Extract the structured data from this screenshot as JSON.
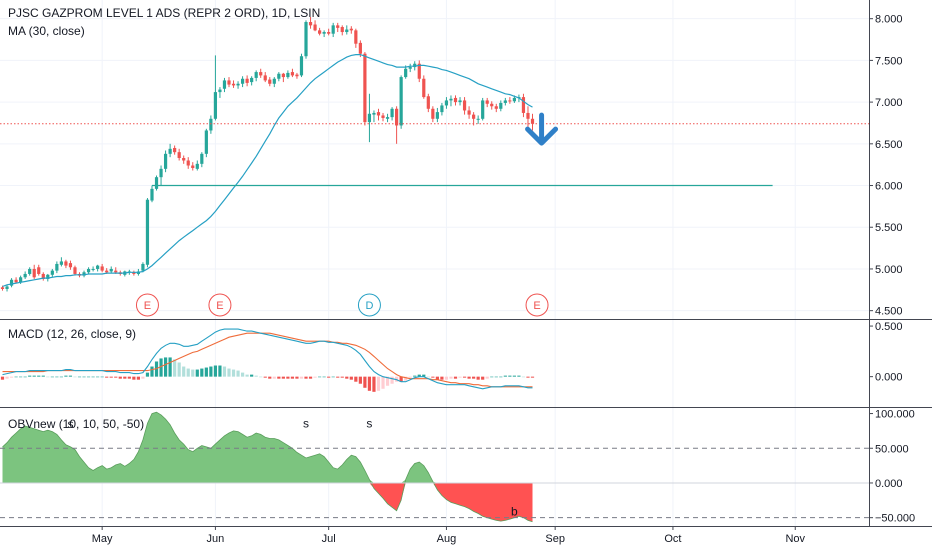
{
  "chart_data": [
    {
      "panel": "price",
      "type": "candlestick",
      "title": "PJSC GAZPROM LEVEL 1 ADS (REPR 2 ORD), 1D, LSIN",
      "indicator_label": "MA (30, close)",
      "ylim": [
        4.4,
        8.2
      ],
      "yticks": [
        "8.000",
        "7.500",
        "7.000",
        "6.500",
        "6.000",
        "5.500",
        "5.000",
        "4.500"
      ],
      "ytick_values": [
        8.0,
        7.5,
        7.0,
        6.5,
        6.0,
        5.5,
        5.0,
        4.5
      ],
      "reference_line": 6.74,
      "horizontal_level": 6.0,
      "down_arrow": {
        "day": 119,
        "value": 6.58
      },
      "events": [
        {
          "day": 32,
          "label": "E",
          "color": "#ef5350"
        },
        {
          "day": 48,
          "label": "E",
          "color": "#ef5350"
        },
        {
          "day": 81,
          "label": "D",
          "color": "#26a0c4"
        },
        {
          "day": 118,
          "label": "E",
          "color": "#ef5350"
        }
      ],
      "ma_series": {
        "name": "MA (30, close)",
        "color": "#26a0c4"
      }
    },
    {
      "panel": "macd",
      "type": "line",
      "indicator_label": "MACD (12, 26, close, 9)",
      "ylim": [
        -0.3,
        0.56
      ],
      "yticks": [
        "0.500",
        "0.000"
      ],
      "ytick_values": [
        0.5,
        0.0
      ]
    },
    {
      "panel": "obv",
      "type": "area",
      "indicator_label": "OBVnew (10, 10, 50, -50)",
      "ylim": [
        -62,
        108
      ],
      "yticks": [
        "100.000",
        "50.000",
        "0.000",
        "−50.000"
      ],
      "ytick_values": [
        100,
        50,
        0,
        -50
      ],
      "dashed_levels": [
        50,
        -50
      ],
      "markers": [
        {
          "day": 15,
          "value": 85,
          "label": "s"
        },
        {
          "day": 67,
          "value": 86,
          "label": "s"
        },
        {
          "day": 81,
          "value": 86,
          "label": "s"
        },
        {
          "day": 113,
          "value": -41,
          "label": "b"
        }
      ]
    }
  ],
  "candles_o": [
    4.78,
    4.76,
    4.8,
    4.87,
    4.84,
    4.9,
    4.94,
    5,
    5.02,
    4.94,
    4.88,
    4.93,
    4.98,
    5.05,
    5.09,
    5.07,
    5.02,
    4.94,
    4.92,
    4.96,
    4.99,
    5,
    5.03,
    4.98,
    4.97,
    4.98,
    4.96,
    4.93,
    4.96,
    4.96,
    4.94,
    4.98,
    5.05,
    5.82,
    5.96,
    6.1,
    6.2,
    6.38,
    6.45,
    6.4,
    6.33,
    6.3,
    6.24,
    6.2,
    6.26,
    6.38,
    6.66,
    6.8,
    7.12,
    7.16,
    7.26,
    7.22,
    7.2,
    7.22,
    7.28,
    7.24,
    7.29,
    7.36,
    7.32,
    7.27,
    7.22,
    7.28,
    7.34,
    7.3,
    7.36,
    7.33,
    7.32,
    7.55,
    7.96,
    7.93,
    7.86,
    7.82,
    7.84,
    7.82,
    7.92,
    7.9,
    7.84,
    7.88,
    7.86,
    7.71,
    7.58,
    6.76,
    6.85,
    6.88,
    6.84,
    6.8,
    6.82,
    6.92,
    6.72,
    7.3,
    7.4,
    7.42,
    7.46,
    7.28,
    7.07,
    6.92,
    6.8,
    6.88,
    6.96,
    7.02,
    7.05,
    7,
    7.02,
    6.9,
    6.85,
    6.8,
    6.8,
    7.02,
    6.98,
    6.95,
    6.92,
    6.99,
    7.02,
    7.01,
    7.05,
    7.06,
    6.87,
    6.8
  ],
  "candles_h": [
    4.8,
    4.81,
    4.89,
    4.9,
    4.92,
    4.97,
    5.02,
    5.05,
    5.05,
    4.96,
    4.94,
    5,
    5.09,
    5.14,
    5.11,
    5.1,
    5.04,
    4.96,
    4.98,
    5.02,
    5.03,
    5.05,
    5.06,
    5.01,
    5.03,
    5.02,
    4.98,
    4.98,
    4.99,
    4.98,
    5,
    5.08,
    5.85,
    6,
    6.12,
    6.24,
    6.42,
    6.5,
    6.48,
    6.44,
    6.36,
    6.34,
    6.28,
    6.3,
    6.4,
    6.68,
    6.84,
    7.56,
    7.18,
    7.29,
    7.3,
    7.26,
    7.25,
    7.31,
    7.32,
    7.31,
    7.38,
    7.4,
    7.36,
    7.3,
    7.3,
    7.36,
    7.35,
    7.38,
    7.4,
    7.35,
    7.58,
    7.98,
    8.02,
    7.98,
    7.89,
    7.86,
    7.88,
    7.95,
    7.95,
    7.92,
    7.92,
    7.91,
    7.88,
    7.74,
    7.6,
    7.1,
    6.9,
    6.92,
    6.87,
    6.86,
    6.94,
    6.95,
    7.32,
    7.44,
    7.46,
    7.49,
    7.5,
    7.32,
    7.1,
    6.95,
    6.93,
    6.99,
    7.06,
    7.08,
    7.08,
    7.06,
    7.06,
    6.95,
    6.88,
    6.84,
    7.05,
    7.05,
    7.01,
    6.98,
    7.02,
    7.05,
    7.06,
    7.08,
    7.09,
    7.1,
    6.95,
    6.86
  ],
  "candles_l": [
    4.74,
    4.73,
    4.78,
    4.83,
    4.82,
    4.88,
    4.92,
    4.88,
    4.92,
    4.86,
    4.85,
    4.9,
    4.95,
    5.03,
    5.01,
    4.99,
    4.92,
    4.9,
    4.9,
    4.94,
    4.97,
    4.97,
    4.96,
    4.94,
    4.95,
    4.94,
    4.92,
    4.91,
    4.93,
    4.92,
    4.92,
    4.96,
    5.02,
    5.8,
    5.94,
    6,
    6.16,
    6.34,
    6.37,
    6.3,
    6.26,
    6.2,
    6.18,
    6.18,
    6.22,
    6.34,
    6.62,
    6.78,
    7.05,
    7.12,
    7.18,
    7.17,
    7.16,
    7.18,
    7.19,
    7.2,
    7.25,
    7.29,
    7.24,
    7.19,
    7.18,
    7.25,
    7.24,
    7.28,
    7.3,
    7.28,
    7.3,
    7.52,
    7.88,
    7.85,
    7.8,
    7.78,
    7.8,
    7.78,
    7.84,
    7.8,
    7.81,
    7.82,
    7.65,
    7.54,
    6.72,
    6.52,
    6.76,
    6.78,
    6.77,
    6.76,
    6.78,
    6.5,
    6.68,
    7.28,
    7.36,
    7.38,
    7.24,
    7.04,
    6.88,
    6.76,
    6.76,
    6.84,
    6.92,
    6.95,
    6.96,
    6.96,
    6.85,
    6.8,
    6.72,
    6.74,
    6.78,
    6.94,
    6.91,
    6.88,
    6.89,
    6.96,
    6.98,
    6.99,
    7,
    6.82,
    6.7,
    6.66
  ],
  "candles_c": [
    4.76,
    4.79,
    4.87,
    4.84,
    4.9,
    4.94,
    5,
    4.9,
    4.94,
    4.88,
    4.93,
    4.98,
    5.06,
    5.09,
    5.04,
    5.02,
    4.94,
    4.92,
    4.96,
    5,
    5,
    5.04,
    4.98,
    4.96,
    5,
    4.96,
    4.94,
    4.97,
    4.97,
    4.94,
    4.97,
    5.06,
    5.83,
    5.96,
    6.1,
    6.2,
    6.38,
    6.44,
    6.4,
    6.33,
    6.3,
    6.24,
    6.21,
    6.26,
    6.38,
    6.66,
    6.8,
    7.12,
    7.15,
    7.26,
    7.21,
    7.2,
    7.22,
    7.28,
    7.23,
    7.29,
    7.36,
    7.32,
    7.26,
    7.22,
    7.28,
    7.34,
    7.3,
    7.35,
    7.32,
    7.31,
    7.55,
    7.96,
    7.92,
    7.86,
    7.82,
    7.84,
    7.82,
    7.92,
    7.89,
    7.84,
    7.87,
    7.86,
    7.7,
    7.58,
    6.76,
    6.86,
    6.87,
    6.84,
    6.81,
    6.82,
    6.92,
    6.72,
    7.3,
    7.4,
    7.42,
    7.46,
    7.28,
    7.06,
    6.92,
    6.8,
    6.88,
    6.96,
    7.02,
    7.04,
    7,
    7.02,
    6.9,
    6.85,
    6.8,
    6.8,
    7.02,
    6.98,
    6.95,
    6.92,
    6.99,
    7.02,
    7.01,
    7.05,
    7.06,
    6.87,
    6.8,
    6.74
  ],
  "ma": [
    4.79,
    4.81,
    4.82,
    4.83,
    4.84,
    4.85,
    4.86,
    4.87,
    4.88,
    4.89,
    4.89,
    4.9,
    4.91,
    4.91,
    4.92,
    4.92,
    4.93,
    4.93,
    4.93,
    4.94,
    4.94,
    4.94,
    4.94,
    4.95,
    4.95,
    4.95,
    4.95,
    4.95,
    4.96,
    4.96,
    4.96,
    4.97,
    5.0,
    5.04,
    5.09,
    5.14,
    5.19,
    5.24,
    5.29,
    5.34,
    5.38,
    5.42,
    5.46,
    5.5,
    5.54,
    5.58,
    5.63,
    5.69,
    5.76,
    5.83,
    5.9,
    5.97,
    6.04,
    6.11,
    6.19,
    6.27,
    6.35,
    6.44,
    6.53,
    6.62,
    6.72,
    6.81,
    6.88,
    6.95,
    7.0,
    7.05,
    7.11,
    7.17,
    7.23,
    7.28,
    7.32,
    7.36,
    7.4,
    7.44,
    7.48,
    7.51,
    7.54,
    7.56,
    7.57,
    7.57,
    7.55,
    7.53,
    7.51,
    7.49,
    7.47,
    7.45,
    7.44,
    7.42,
    7.42,
    7.42,
    7.43,
    7.43,
    7.44,
    7.44,
    7.43,
    7.42,
    7.41,
    7.39,
    7.38,
    7.36,
    7.34,
    7.32,
    7.3,
    7.28,
    7.25,
    7.22,
    7.2,
    7.18,
    7.16,
    7.14,
    7.12,
    7.1,
    7.09,
    7.07,
    7.05,
    7.01,
    6.97,
    6.94
  ],
  "macd_line": [
    0.02,
    0.03,
    0.04,
    0.05,
    0.05,
    0.05,
    0.06,
    0.06,
    0.06,
    0.06,
    0.06,
    0.06,
    0.06,
    0.06,
    0.07,
    0.07,
    0.06,
    0.06,
    0.06,
    0.06,
    0.06,
    0.06,
    0.06,
    0.05,
    0.05,
    0.05,
    0.04,
    0.04,
    0.04,
    0.03,
    0.03,
    0.04,
    0.1,
    0.17,
    0.23,
    0.28,
    0.31,
    0.33,
    0.33,
    0.32,
    0.3,
    0.3,
    0.31,
    0.32,
    0.35,
    0.38,
    0.41,
    0.44,
    0.46,
    0.47,
    0.47,
    0.47,
    0.47,
    0.46,
    0.45,
    0.45,
    0.44,
    0.43,
    0.42,
    0.41,
    0.4,
    0.39,
    0.38,
    0.37,
    0.36,
    0.35,
    0.34,
    0.33,
    0.33,
    0.34,
    0.35,
    0.35,
    0.34,
    0.34,
    0.33,
    0.32,
    0.31,
    0.29,
    0.26,
    0.22,
    0.16,
    0.1,
    0.05,
    0.02,
    0,
    -0.01,
    -0.02,
    -0.03,
    -0.05,
    -0.05,
    -0.03,
    -0.01,
    0,
    0,
    -0.02,
    -0.04,
    -0.06,
    -0.07,
    -0.08,
    -0.08,
    -0.08,
    -0.08,
    -0.08,
    -0.09,
    -0.1,
    -0.11,
    -0.12,
    -0.11,
    -0.1,
    -0.1,
    -0.1,
    -0.09,
    -0.09,
    -0.09,
    -0.09,
    -0.1,
    -0.11,
    -0.11
  ],
  "signal_line": [
    0.05,
    0.05,
    0.05,
    0.05,
    0.05,
    0.05,
    0.05,
    0.05,
    0.05,
    0.05,
    0.06,
    0.06,
    0.06,
    0.06,
    0.06,
    0.06,
    0.06,
    0.06,
    0.06,
    0.06,
    0.06,
    0.06,
    0.06,
    0.06,
    0.06,
    0.06,
    0.06,
    0.06,
    0.06,
    0.06,
    0.06,
    0.06,
    0.06,
    0.07,
    0.08,
    0.1,
    0.12,
    0.14,
    0.16,
    0.18,
    0.2,
    0.22,
    0.24,
    0.25,
    0.27,
    0.29,
    0.31,
    0.33,
    0.35,
    0.37,
    0.39,
    0.4,
    0.41,
    0.42,
    0.43,
    0.43,
    0.43,
    0.43,
    0.43,
    0.43,
    0.42,
    0.41,
    0.4,
    0.39,
    0.38,
    0.37,
    0.36,
    0.35,
    0.35,
    0.35,
    0.35,
    0.35,
    0.35,
    0.34,
    0.34,
    0.33,
    0.33,
    0.32,
    0.31,
    0.29,
    0.27,
    0.24,
    0.2,
    0.16,
    0.12,
    0.08,
    0.05,
    0.02,
    0,
    -0.01,
    -0.02,
    -0.02,
    -0.02,
    -0.02,
    -0.02,
    -0.03,
    -0.03,
    -0.04,
    -0.05,
    -0.06,
    -0.06,
    -0.07,
    -0.07,
    -0.07,
    -0.08,
    -0.08,
    -0.09,
    -0.09,
    -0.1,
    -0.1,
    -0.1,
    -0.1,
    -0.1,
    -0.1,
    -0.1,
    -0.1,
    -0.1,
    -0.1
  ],
  "obv": [
    52,
    58,
    66,
    72,
    78,
    82,
    80,
    78,
    76,
    74,
    76,
    74,
    70,
    62,
    55,
    52,
    48,
    38,
    30,
    22,
    18,
    22,
    25,
    20,
    22,
    26,
    28,
    24,
    28,
    34,
    45,
    62,
    86,
    100,
    102,
    98,
    92,
    84,
    72,
    62,
    56,
    48,
    45,
    50,
    54,
    52,
    50,
    56,
    62,
    68,
    72,
    75,
    74,
    70,
    66,
    68,
    72,
    70,
    66,
    64,
    64,
    62,
    58,
    54,
    50,
    44,
    40,
    36,
    38,
    40,
    42,
    38,
    30,
    22,
    20,
    26,
    34,
    40,
    38,
    30,
    18,
    5,
    -8,
    -15,
    -22,
    -30,
    -35,
    -40,
    -25,
    5,
    20,
    28,
    30,
    25,
    15,
    2,
    -10,
    -18,
    -24,
    -28,
    -30,
    -32,
    -34,
    -37,
    -41,
    -44,
    -48,
    -50,
    -52,
    -54,
    -55,
    -54,
    -52,
    -50,
    -48,
    -50,
    -54,
    -56
  ],
  "axis": {
    "x_labels": [
      "May",
      "Jun",
      "Jul",
      "Aug",
      "Sep",
      "Oct",
      "Nov"
    ],
    "x_label_days": [
      22,
      47,
      72,
      98,
      122,
      148,
      175
    ]
  },
  "colors": {
    "up": "#26a69a",
    "down": "#ef5350",
    "ma": "#26a0c4",
    "macd": "#26a0c4",
    "signal": "#ef6c3a",
    "hist_up_strong": "#26a69a",
    "hist_up_weak": "#b2dfdb",
    "hist_down_strong": "#ef5350",
    "hist_down_weak": "#ffcdd2",
    "obv_pos": "#7cc47f",
    "obv_neg": "#ff5252",
    "level_line": "#26a69a",
    "ref_line": "#ef5350",
    "arrow": "#2f80c8"
  }
}
